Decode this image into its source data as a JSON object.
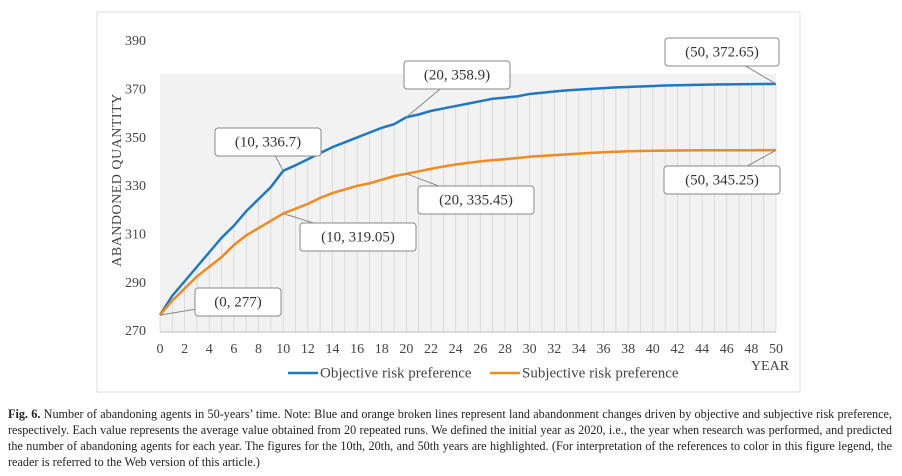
{
  "chart_data": {
    "type": "line",
    "ylabel": "ABANDONED QUANTITY",
    "xlabel": "YEAR",
    "x": [
      0,
      1,
      2,
      3,
      4,
      5,
      6,
      7,
      8,
      9,
      10,
      11,
      12,
      13,
      14,
      15,
      16,
      17,
      18,
      19,
      20,
      21,
      22,
      23,
      24,
      25,
      26,
      27,
      28,
      29,
      30,
      31,
      32,
      33,
      34,
      35,
      36,
      37,
      38,
      39,
      40,
      41,
      42,
      43,
      44,
      45,
      46,
      47,
      48,
      49,
      50
    ],
    "xlim": [
      0,
      50
    ],
    "xticks": [
      0,
      2,
      4,
      6,
      8,
      10,
      12,
      14,
      16,
      18,
      20,
      22,
      24,
      26,
      28,
      30,
      32,
      34,
      36,
      38,
      40,
      42,
      44,
      46,
      48,
      50
    ],
    "ylim": [
      270,
      390
    ],
    "yticks": [
      270,
      290,
      310,
      330,
      350,
      370,
      390
    ],
    "legend": "bottom",
    "series": [
      {
        "name": "Objective risk preference",
        "color": "#1f78c4",
        "values": [
          277,
          285,
          291,
          297,
          303,
          309,
          314,
          320,
          325,
          330,
          336.7,
          339,
          341.5,
          344,
          346.5,
          348.5,
          350.5,
          352.5,
          354.5,
          356,
          358.9,
          360,
          361.5,
          362.5,
          363.5,
          364.5,
          365.5,
          366.5,
          367,
          367.5,
          368.5,
          369,
          369.5,
          370,
          370.3,
          370.6,
          370.9,
          371.2,
          371.4,
          371.6,
          371.8,
          372,
          372.1,
          372.2,
          372.3,
          372.4,
          372.45,
          372.5,
          372.55,
          372.6,
          372.65
        ]
      },
      {
        "name": "Subjective risk preference",
        "color": "#f28a1e",
        "values": [
          277,
          283,
          288,
          293,
          297,
          301,
          306,
          310,
          313,
          316,
          319.05,
          321,
          323,
          325.5,
          327.5,
          329,
          330.5,
          331.5,
          333,
          334.5,
          335.45,
          336.5,
          337.5,
          338.5,
          339.3,
          340,
          340.6,
          341.1,
          341.5,
          342,
          342.5,
          342.9,
          343.2,
          343.5,
          343.8,
          344.1,
          344.4,
          344.6,
          344.8,
          344.9,
          345,
          345.05,
          345.1,
          345.15,
          345.2,
          345.2,
          345.2,
          345.22,
          345.23,
          345.24,
          345.25
        ]
      }
    ],
    "annotations": [
      "(0, 277)",
      "(10, 336.7)",
      "(20, 358.9)",
      "(50, 372.65)",
      "(10, 319.05)",
      "(20, 335.45)",
      "(50, 345.25)"
    ]
  },
  "caption": {
    "label": "Fig. 6.",
    "text": "Number of abandoning agents in 50-years’ time. Note: Blue and orange broken lines represent land abandonment changes driven by objective and subjective risk preference, respectively. Each value represents the average value obtained from 20 repeated runs. We defined the initial year as 2020, i.e., the year when research was performed, and predicted the number of abandoning agents for each year. The figures for the 10th, 20th, and 50th years are highlighted. (For interpretation of the references to color in this figure legend, the reader is referred to the Web version of this article.)"
  }
}
